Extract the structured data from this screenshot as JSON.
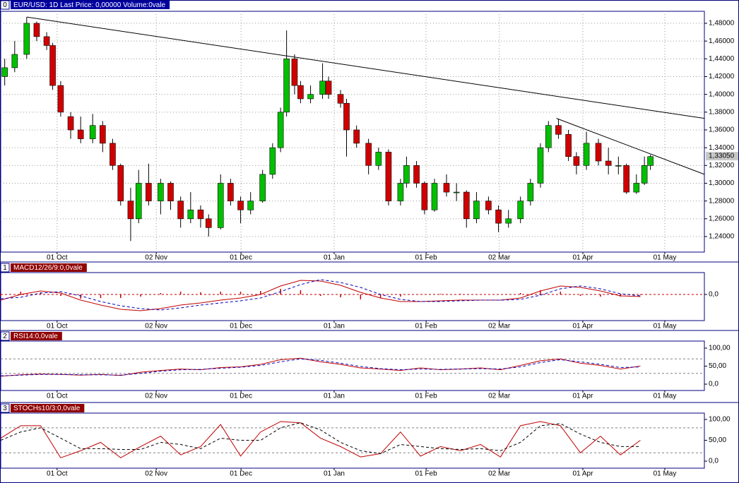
{
  "chart_data": [
    {
      "type": "candlestick",
      "panel_id": "0",
      "title": "EUR/USD: 1D Last Price: 0,00000 Volume:0vale",
      "tab_color": "#0000a0",
      "xlim": [
        0,
        176
      ],
      "ylim": [
        1.2225,
        1.4935
      ],
      "grid": true,
      "up_color": "#00c000",
      "down_color": "#d00000",
      "xticks": [
        {
          "value": 14.1,
          "label": "01 Oct"
        },
        {
          "value": 38.9,
          "label": "02 Nov"
        },
        {
          "value": 60.1,
          "label": "01 Dec"
        },
        {
          "value": 83.4,
          "label": "01 Jan"
        },
        {
          "value": 106.4,
          "label": "01 Feb"
        },
        {
          "value": 124.7,
          "label": "02 Mar"
        },
        {
          "value": 145.6,
          "label": "01 Apr"
        },
        {
          "value": 166.1,
          "label": "01 May"
        }
      ],
      "yticks": [
        {
          "value": 1.24,
          "label": "1,24000"
        },
        {
          "value": 1.26,
          "label": "1,26000"
        },
        {
          "value": 1.28,
          "label": "1,28000"
        },
        {
          "value": 1.3,
          "label": "1,30000"
        },
        {
          "value": 1.32,
          "label": "1,32000"
        },
        {
          "value": 1.34,
          "label": "1,34000"
        },
        {
          "value": 1.36,
          "label": "1,36000"
        },
        {
          "value": 1.38,
          "label": "1,38000"
        },
        {
          "value": 1.4,
          "label": "1,40000"
        },
        {
          "value": 1.42,
          "label": "1,42000"
        },
        {
          "value": 1.44,
          "label": "1,44000"
        },
        {
          "value": 1.46,
          "label": "1,46000"
        },
        {
          "value": 1.48,
          "label": "1,48000"
        }
      ],
      "x": [
        1,
        3.5,
        6.5,
        9,
        11.5,
        13,
        15,
        17.5,
        20,
        23,
        25.5,
        28,
        30,
        32.5,
        34.5,
        37,
        40,
        42.5,
        45,
        47.5,
        50,
        52,
        55,
        57.5,
        60,
        62.5,
        65.5,
        68,
        70,
        71.5,
        73.5,
        75,
        77.5,
        80.5,
        82,
        85,
        86.5,
        89,
        92,
        94.5,
        97,
        100,
        101.5,
        104,
        106,
        108.5,
        111.5,
        114,
        116.5,
        119,
        122,
        124.5,
        127,
        130,
        132.5,
        135,
        137,
        139.5,
        142,
        144,
        146.5,
        149.5,
        152,
        154.5,
        156.5,
        159,
        161,
        162.5
      ],
      "open": [
        1.42,
        1.43,
        1.445,
        1.48,
        1.465,
        1.455,
        1.41,
        1.375,
        1.36,
        1.35,
        1.365,
        1.345,
        1.32,
        1.28,
        1.26,
        1.3,
        1.28,
        1.3,
        1.28,
        1.26,
        1.27,
        1.26,
        1.25,
        1.3,
        1.28,
        1.27,
        1.28,
        1.31,
        1.34,
        1.38,
        1.44,
        1.41,
        1.395,
        1.4,
        1.415,
        1.4,
        1.39,
        1.36,
        1.345,
        1.32,
        1.335,
        1.28,
        1.3,
        1.32,
        1.3,
        1.27,
        1.3,
        1.29,
        1.29,
        1.26,
        1.28,
        1.27,
        1.255,
        1.26,
        1.28,
        1.3,
        1.34,
        1.365,
        1.355,
        1.33,
        1.32,
        1.345,
        1.325,
        1.32,
        1.32,
        1.29,
        1.3,
        1.32
      ],
      "high": [
        1.44,
        1.46,
        1.487,
        1.482,
        1.47,
        1.458,
        1.415,
        1.38,
        1.375,
        1.378,
        1.37,
        1.35,
        1.322,
        1.295,
        1.315,
        1.322,
        1.305,
        1.302,
        1.285,
        1.29,
        1.275,
        1.265,
        1.31,
        1.305,
        1.285,
        1.29,
        1.315,
        1.345,
        1.385,
        1.472,
        1.445,
        1.415,
        1.41,
        1.435,
        1.42,
        1.405,
        1.395,
        1.365,
        1.35,
        1.34,
        1.338,
        1.305,
        1.33,
        1.325,
        1.302,
        1.305,
        1.31,
        1.3,
        1.292,
        1.29,
        1.285,
        1.275,
        1.27,
        1.285,
        1.305,
        1.345,
        1.37,
        1.372,
        1.36,
        1.335,
        1.358,
        1.35,
        1.34,
        1.33,
        1.322,
        1.31,
        1.33,
        1.332
      ],
      "low": [
        1.41,
        1.425,
        1.44,
        1.46,
        1.45,
        1.405,
        1.375,
        1.35,
        1.345,
        1.345,
        1.335,
        1.315,
        1.275,
        1.235,
        1.255,
        1.275,
        1.265,
        1.27,
        1.25,
        1.255,
        1.25,
        1.24,
        1.248,
        1.275,
        1.255,
        1.265,
        1.278,
        1.305,
        1.335,
        1.375,
        1.4,
        1.39,
        1.39,
        1.395,
        1.395,
        1.385,
        1.33,
        1.34,
        1.31,
        1.315,
        1.275,
        1.275,
        1.295,
        1.295,
        1.265,
        1.268,
        1.285,
        1.28,
        1.25,
        1.255,
        1.265,
        1.245,
        1.25,
        1.255,
        1.275,
        1.295,
        1.335,
        1.35,
        1.325,
        1.31,
        1.315,
        1.32,
        1.31,
        1.31,
        1.288,
        1.288,
        1.298,
        1.315
      ],
      "close": [
        1.43,
        1.445,
        1.48,
        1.465,
        1.455,
        1.41,
        1.38,
        1.36,
        1.35,
        1.365,
        1.345,
        1.32,
        1.28,
        1.26,
        1.3,
        1.28,
        1.3,
        1.28,
        1.26,
        1.27,
        1.26,
        1.25,
        1.3,
        1.28,
        1.27,
        1.28,
        1.31,
        1.34,
        1.38,
        1.44,
        1.41,
        1.395,
        1.4,
        1.415,
        1.4,
        1.39,
        1.36,
        1.345,
        1.32,
        1.335,
        1.28,
        1.3,
        1.32,
        1.3,
        1.27,
        1.3,
        1.29,
        1.29,
        1.26,
        1.28,
        1.27,
        1.255,
        1.26,
        1.28,
        1.3,
        1.34,
        1.365,
        1.355,
        1.33,
        1.32,
        1.345,
        1.325,
        1.32,
        1.32,
        1.29,
        1.3,
        1.32,
        1.33
      ],
      "trendlines": [
        {
          "x": [
            6.5,
            176
          ],
          "y": [
            1.487,
            1.373
          ]
        },
        {
          "x": [
            139,
            176
          ],
          "y": [
            1.373,
            1.31
          ]
        }
      ],
      "last_price": {
        "value": 1.3305,
        "label": "1,33050"
      }
    },
    {
      "type": "line",
      "panel_id": "1",
      "title": "MACD12/26/9:0,0vale",
      "tab_color": "#900000",
      "xlim": [
        0,
        176
      ],
      "ylim": [
        -0.037,
        0.031
      ],
      "levels": [
        0
      ],
      "level_color": "#c00000",
      "xticks": [
        {
          "value": 14.1,
          "label": "01 Oct"
        },
        {
          "value": 38.9,
          "label": "02 Nov"
        },
        {
          "value": 60.1,
          "label": "01 Dec"
        },
        {
          "value": 83.4,
          "label": "01 Jan"
        },
        {
          "value": 106.4,
          "label": "01 Feb"
        },
        {
          "value": 124.7,
          "label": "02 Mar"
        },
        {
          "value": 145.6,
          "label": "01 Apr"
        },
        {
          "value": 166.1,
          "label": "01 May"
        }
      ],
      "yticks": [
        {
          "value": 0,
          "label": "0,0"
        }
      ],
      "x": [
        0,
        5,
        10,
        15,
        20,
        25,
        30,
        35,
        40,
        45,
        50,
        55,
        60,
        65,
        70,
        75,
        80,
        85,
        90,
        95,
        100,
        105,
        110,
        115,
        120,
        125,
        130,
        135,
        140,
        145,
        150,
        155,
        160
      ],
      "series": [
        {
          "kind": "bar",
          "color": "#c00000",
          "values": [
            -0.002,
            0.004,
            0.003,
            -0.002,
            -0.006,
            -0.005,
            -0.005,
            -0.003,
            0.002,
            0.004,
            0.003,
            0.004,
            0.004,
            0.005,
            0.008,
            0.006,
            -0.002,
            -0.004,
            -0.007,
            -0.005,
            -0.003,
            0,
            0.001,
            0.001,
            0,
            0,
            0.002,
            0.006,
            0.004,
            -0.002,
            -0.003,
            -0.003,
            -0.001
          ]
        },
        {
          "color": "#c00000",
          "values": [
            -0.008,
            0,
            0.005,
            0.002,
            -0.008,
            -0.015,
            -0.021,
            -0.023,
            -0.02,
            -0.015,
            -0.012,
            -0.008,
            -0.005,
            0,
            0.012,
            0.02,
            0.019,
            0.013,
            0.003,
            -0.005,
            -0.01,
            -0.01,
            -0.009,
            -0.008,
            -0.008,
            -0.008,
            -0.005,
            0.005,
            0.012,
            0.01,
            0.005,
            -0.002,
            -0.003
          ]
        },
        {
          "color": "#0000c0",
          "dash": true,
          "values": [
            -0.006,
            -0.004,
            0.002,
            0.004,
            -0.002,
            -0.01,
            -0.016,
            -0.02,
            -0.022,
            -0.019,
            -0.015,
            -0.012,
            -0.009,
            -0.005,
            0.004,
            0.014,
            0.021,
            0.017,
            0.01,
            0,
            -0.007,
            -0.01,
            -0.01,
            -0.009,
            -0.008,
            -0.008,
            -0.007,
            -0.001,
            0.008,
            0.012,
            0.008,
            0.001,
            -0.002
          ]
        }
      ]
    },
    {
      "type": "line",
      "panel_id": "2",
      "title": "RSI14:0,0vale",
      "tab_color": "#900000",
      "xlim": [
        0,
        176
      ],
      "ylim": [
        -17.6,
        119.6
      ],
      "levels": [
        30,
        70
      ],
      "level_color": "#808080",
      "xticks": [
        {
          "value": 14.1,
          "label": "01 Oct"
        },
        {
          "value": 38.9,
          "label": "02 Nov"
        },
        {
          "value": 60.1,
          "label": "01 Dec"
        },
        {
          "value": 83.4,
          "label": "01 Jan"
        },
        {
          "value": 106.4,
          "label": "01 Feb"
        },
        {
          "value": 124.7,
          "label": "02 Mar"
        },
        {
          "value": 145.6,
          "label": "01 Apr"
        },
        {
          "value": 166.1,
          "label": "01 May"
        }
      ],
      "yticks": [
        {
          "value": 0,
          "label": "0,0"
        },
        {
          "value": 50,
          "label": "50,00"
        },
        {
          "value": 100,
          "label": "100,00"
        }
      ],
      "x": [
        0,
        5,
        10,
        15,
        20,
        25,
        30,
        35,
        40,
        45,
        50,
        55,
        60,
        65,
        70,
        75,
        80,
        85,
        90,
        95,
        100,
        105,
        110,
        115,
        120,
        125,
        130,
        135,
        140,
        145,
        150,
        155,
        160
      ],
      "series": [
        {
          "color": "#c00000",
          "values": [
            22,
            26,
            28,
            27,
            25,
            27,
            24,
            33,
            38,
            42,
            40,
            46,
            48,
            55,
            68,
            72,
            62,
            55,
            45,
            42,
            38,
            45,
            40,
            42,
            45,
            40,
            52,
            65,
            70,
            58,
            52,
            42,
            50
          ]
        },
        {
          "color": "#0000c0",
          "dash": true,
          "values": [
            23,
            25,
            27,
            27,
            26,
            26,
            25,
            30,
            36,
            40,
            41,
            44,
            47,
            52,
            62,
            70,
            66,
            58,
            49,
            43,
            40,
            42,
            41,
            42,
            43,
            42,
            48,
            60,
            68,
            62,
            55,
            46,
            48
          ]
        }
      ]
    },
    {
      "type": "line",
      "panel_id": "3",
      "title": "STOCHs10/3:0,0vale",
      "tab_color": "#900000",
      "xlim": [
        0,
        176
      ],
      "ylim": [
        -16.9,
        115.3
      ],
      "levels": [
        20,
        80
      ],
      "level_color": "#808080",
      "xticks": [
        {
          "value": 14.1,
          "label": "01 Oct"
        },
        {
          "value": 38.9,
          "label": "02 Nov"
        },
        {
          "value": 60.1,
          "label": "01 Dec"
        },
        {
          "value": 83.4,
          "label": "01 Jan"
        },
        {
          "value": 106.4,
          "label": "01 Feb"
        },
        {
          "value": 124.7,
          "label": "02 Mar"
        },
        {
          "value": 145.6,
          "label": "01 Apr"
        },
        {
          "value": 166.1,
          "label": "01 May"
        }
      ],
      "yticks": [
        {
          "value": 0,
          "label": "0,0"
        },
        {
          "value": 50,
          "label": "50,00"
        },
        {
          "value": 100,
          "label": "100,00"
        }
      ],
      "x": [
        0,
        5,
        10,
        15,
        20,
        25,
        30,
        35,
        40,
        45,
        50,
        55,
        60,
        65,
        70,
        75,
        80,
        85,
        90,
        95,
        100,
        105,
        110,
        115,
        120,
        125,
        130,
        135,
        140,
        145,
        150,
        155,
        160
      ],
      "series": [
        {
          "color": "#c00000",
          "values": [
            55,
            85,
            85,
            8,
            25,
            45,
            8,
            35,
            60,
            15,
            35,
            88,
            12,
            70,
            95,
            92,
            55,
            35,
            10,
            18,
            70,
            12,
            35,
            25,
            40,
            10,
            85,
            95,
            85,
            20,
            60,
            15,
            50
          ]
        },
        {
          "color": "#000000",
          "dash": true,
          "values": [
            50,
            70,
            80,
            55,
            30,
            30,
            28,
            28,
            45,
            40,
            30,
            55,
            50,
            50,
            80,
            92,
            75,
            45,
            25,
            18,
            40,
            35,
            30,
            28,
            30,
            25,
            45,
            85,
            90,
            65,
            45,
            35,
            35
          ]
        }
      ]
    }
  ]
}
